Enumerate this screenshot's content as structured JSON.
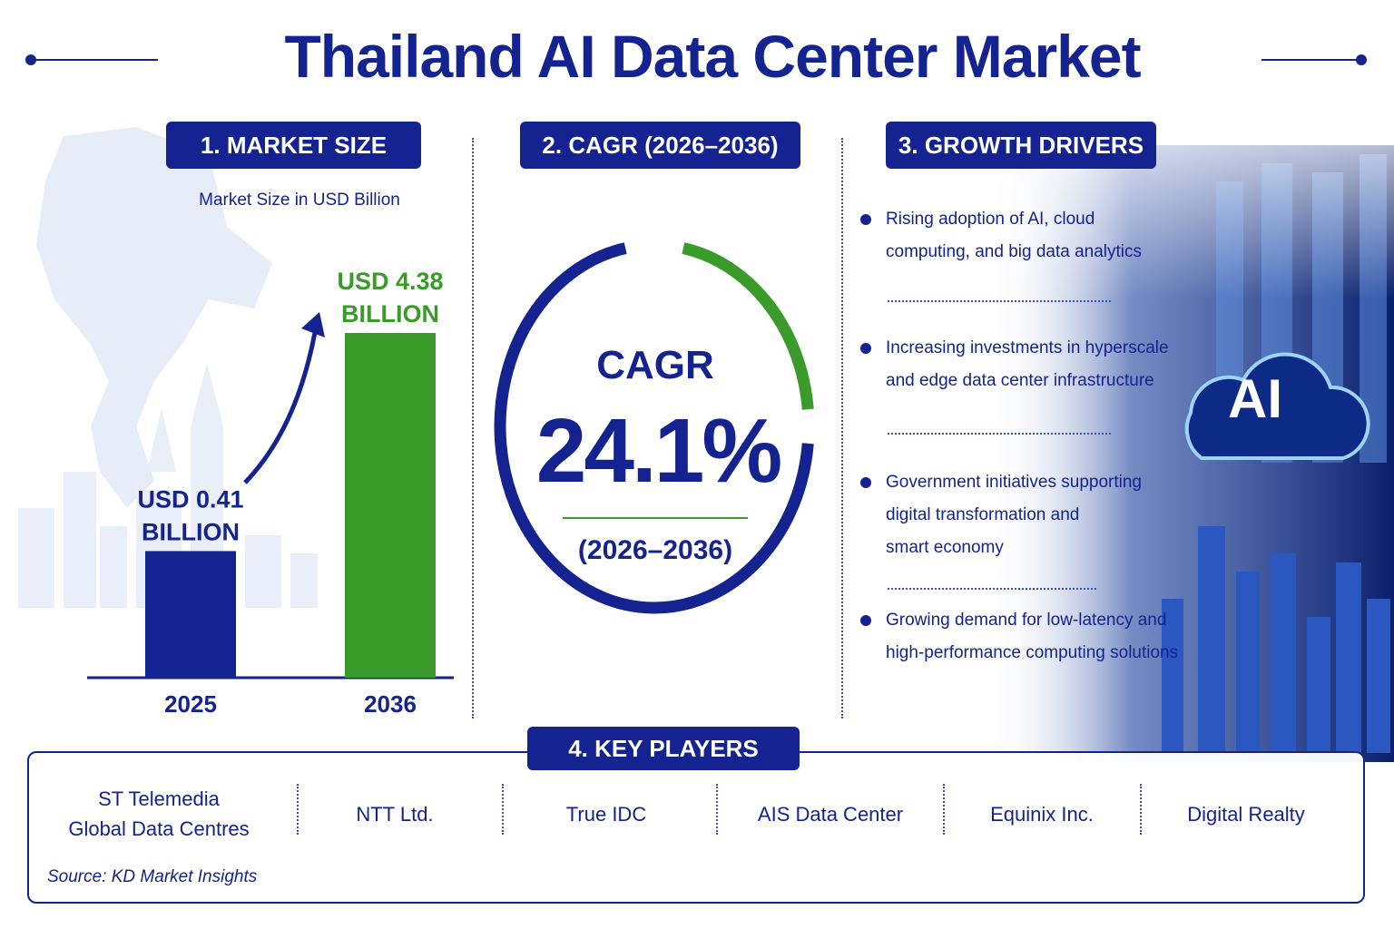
{
  "title": "Thailand AI Data Center Market",
  "sections": {
    "market_size": "1. MARKET SIZE",
    "cagr": "2. CAGR (2026–2036)",
    "growth_drivers": "3. GROWTH DRIVERS",
    "key_players": "4. KEY PLAYERS"
  },
  "market_size": {
    "subtitle": "Market Size in USD Billion"
  },
  "chart_data": {
    "type": "bar",
    "categories": [
      "2025",
      "2036"
    ],
    "values": [
      0.41,
      4.38
    ],
    "data_labels": [
      [
        "USD 0.41",
        "BILLION"
      ],
      [
        "USD 4.38",
        "BILLION"
      ]
    ],
    "ylabel": "Market Size in USD Billion",
    "ylim": [
      0,
      4.38
    ],
    "colors": [
      "#14238f",
      "#3a9a2a"
    ],
    "grid": false
  },
  "cagr": {
    "label": "CAGR",
    "value": "24.1%",
    "period": "(2026–2036)",
    "ring_fraction": 0.25,
    "ring_colors": {
      "main": "#14238f",
      "accent": "#3a9a2a"
    }
  },
  "growth_drivers": [
    [
      "Rising adoption of AI, cloud",
      "computing, and big data analytics"
    ],
    [
      "Increasing investments in hyperscale",
      "and edge data center infrastructure"
    ],
    [
      "Government initiatives supporting",
      "digital transformation and",
      "smart economy"
    ],
    [
      "Growing demand for low-latency and",
      "high-performance computing solutions"
    ]
  ],
  "ai_badge": "AI",
  "key_players": [
    [
      "ST Telemedia",
      "Global Data Centres"
    ],
    [
      "NTT Ltd."
    ],
    [
      "True IDC"
    ],
    [
      "AIS Data Center"
    ],
    [
      "Equinix Inc."
    ],
    [
      "Digital Realty"
    ]
  ],
  "source": "Source: KD Market Insights",
  "colors": {
    "primary": "#14238f",
    "accent_green": "#3a9a2a"
  }
}
